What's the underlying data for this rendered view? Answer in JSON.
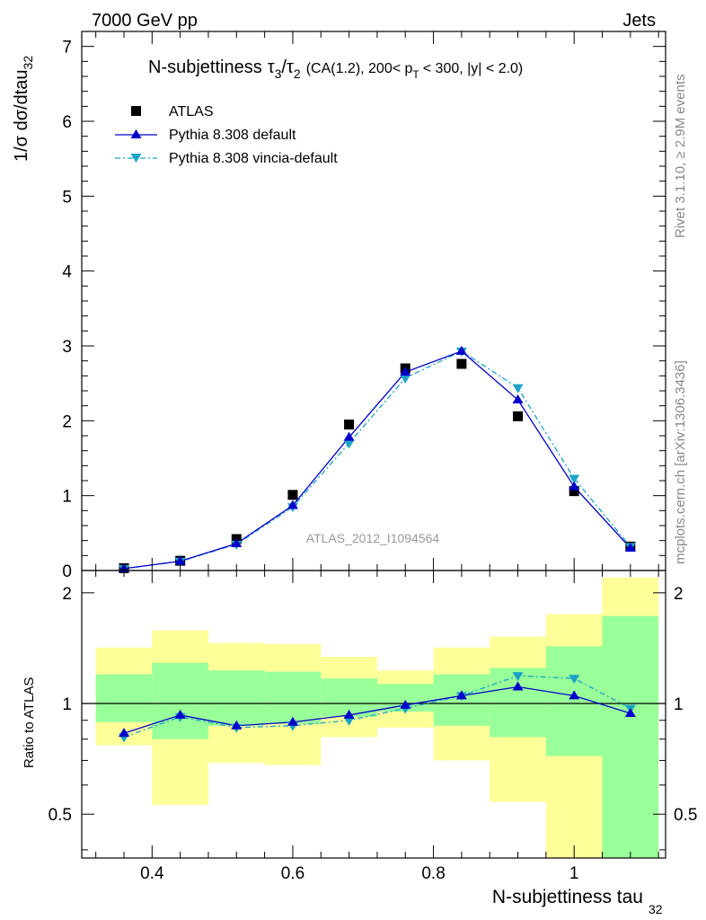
{
  "header": {
    "left": "7000 GeV pp",
    "right": "Jets"
  },
  "side_labels": {
    "rivet": "Rivet 3.1.10, ≥ 2.9M events",
    "mcplots": "mcplots.cern.ch [arXiv:1306.3436]"
  },
  "title": {
    "main": "N-subjettiness",
    "tau_num": "τ",
    "num_sub": "3",
    "slash": "/",
    "tau_den": "τ",
    "den_sub": "2",
    "cuts_pre": "(CA(1.2), 200< p",
    "pt_sub": "T",
    "cuts_post": "< 300, |y| < 2.0)"
  },
  "watermark": "ATLAS_2012_I1094564",
  "y_label_main": "1/σ dσ/dtau",
  "y_label_main_sub": "32",
  "y_label_ratio": "Ratio to ATLAS",
  "x_label": "N-subjettiness tau",
  "x_label_sub": "32",
  "colors": {
    "data": "#000000",
    "default": "#0000cc",
    "vincia": "#1ca3c8",
    "band_yellow": "#ffff99",
    "band_green": "#99ff99"
  },
  "chart_data": {
    "type": "scatter",
    "x_edges": [
      0.32,
      0.4,
      0.48,
      0.56,
      0.64,
      0.72,
      0.8,
      0.88,
      0.96,
      1.04,
      1.12
    ],
    "x": [
      0.36,
      0.44,
      0.52,
      0.6,
      0.68,
      0.76,
      0.84,
      0.92,
      1.0,
      1.08
    ],
    "xlim": [
      0.3,
      1.13
    ],
    "ylim_main": [
      0,
      7.2
    ],
    "ylim_ratio": [
      0.38,
      2.3
    ],
    "x_ticks": [
      "0.4",
      "0.6",
      "0.8",
      "1"
    ],
    "y_ticks_main": [
      "0",
      "1",
      "2",
      "3",
      "4",
      "5",
      "6",
      "7"
    ],
    "y_ticks_ratio": [
      "0.5",
      "1",
      "2"
    ],
    "series": [
      {
        "name": "ATLAS",
        "values": [
          0.03,
          0.13,
          0.42,
          1.01,
          1.95,
          2.7,
          2.76,
          2.06,
          1.06,
          0.32
        ]
      },
      {
        "name": "Pythia 8.308 default",
        "values": [
          0.025,
          0.125,
          0.36,
          0.87,
          1.78,
          2.65,
          2.93,
          2.28,
          1.12,
          0.3
        ],
        "ratio": [
          0.83,
          0.93,
          0.87,
          0.89,
          0.93,
          0.99,
          1.05,
          1.11,
          1.05,
          0.94
        ]
      },
      {
        "name": "Pythia 8.308 vincia-default",
        "values": [
          0.024,
          0.122,
          0.35,
          0.85,
          1.7,
          2.57,
          2.93,
          2.44,
          1.23,
          0.32
        ],
        "ratio": [
          0.81,
          0.92,
          0.86,
          0.87,
          0.9,
          0.97,
          1.05,
          1.19,
          1.17,
          0.97
        ]
      }
    ],
    "band_inner": [
      [
        0.89,
        1.2
      ],
      [
        0.8,
        1.29
      ],
      [
        0.87,
        1.23
      ],
      [
        0.88,
        1.22
      ],
      [
        0.92,
        1.17
      ],
      [
        0.95,
        1.13
      ],
      [
        0.87,
        1.2
      ],
      [
        0.81,
        1.25
      ],
      [
        0.72,
        1.43
      ],
      [
        0.36,
        1.73
      ]
    ],
    "band_outer": [
      [
        0.77,
        1.42
      ],
      [
        0.53,
        1.58
      ],
      [
        0.69,
        1.46
      ],
      [
        0.68,
        1.45
      ],
      [
        0.81,
        1.34
      ],
      [
        0.86,
        1.23
      ],
      [
        0.7,
        1.42
      ],
      [
        0.54,
        1.52
      ],
      [
        0.3,
        1.75
      ],
      [
        0.3,
        2.2
      ]
    ]
  }
}
